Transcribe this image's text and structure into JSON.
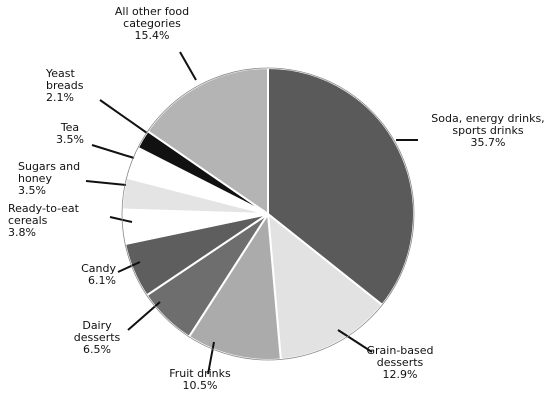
{
  "chart_data": {
    "type": "pie",
    "categories": [
      "Soda, energy drinks, sports drinks",
      "Grain-based desserts",
      "Fruit drinks",
      "Dairy desserts",
      "Candy",
      "Ready-to-eat cereals",
      "Sugars and honey",
      "Tea",
      "Yeast breads",
      "All other food categories"
    ],
    "values": [
      35.7,
      12.9,
      10.5,
      6.5,
      6.1,
      3.8,
      3.5,
      3.5,
      2.1,
      15.4
    ],
    "value_labels": [
      "35.7%",
      "12.9%",
      "10.5%",
      "6.5%",
      "6.1%",
      "3.8%",
      "3.5%",
      "3.5%",
      "2.1%",
      "15.4%"
    ],
    "colors": [
      "#5a5a5a",
      "#e2e2e2",
      "#ababab",
      "#6e6e6e",
      "#5e5e5e",
      "#ffffff",
      "#e4e4e4",
      "#ffffff",
      "#111111",
      "#b4b4b4"
    ]
  }
}
